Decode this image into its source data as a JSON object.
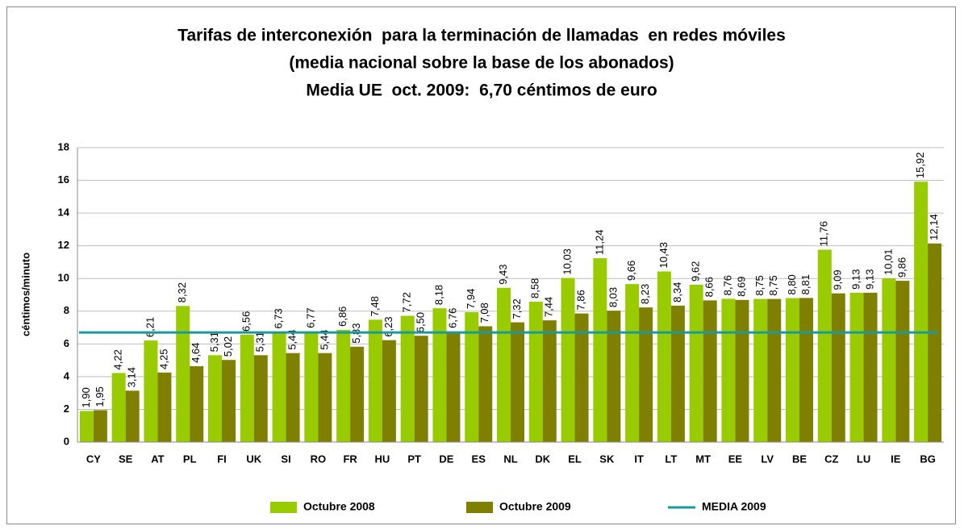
{
  "chart_data": {
    "type": "bar",
    "title": [
      "Tarifas de interconexión  para la terminación de llamadas  en redes móviles",
      "(media nacional sobre la base de los abonados)",
      "Media UE  oct. 2009:  6,70 céntimos de euro"
    ],
    "y_label": "céntimos/minuto",
    "categories": [
      "CY",
      "SE",
      "AT",
      "PL",
      "FI",
      "UK",
      "SI",
      "RO",
      "FR",
      "HU",
      "PT",
      "DE",
      "ES",
      "NL",
      "DK",
      "EL",
      "SK",
      "IT",
      "LT",
      "MT",
      "EE",
      "LV",
      "BE",
      "CZ",
      "LU",
      "IE",
      "BG"
    ],
    "series": [
      {
        "name": "Octubre 2008",
        "color": "#99cc00",
        "values": [
          1.9,
          4.22,
          6.21,
          8.32,
          5.31,
          6.56,
          6.73,
          6.77,
          6.86,
          7.48,
          7.72,
          8.18,
          7.94,
          9.43,
          8.58,
          10.03,
          11.24,
          9.66,
          10.43,
          9.62,
          8.76,
          8.75,
          8.8,
          11.76,
          9.13,
          10.01,
          15.92
        ],
        "value_labels": [
          "1,90",
          "4,22",
          "6,21",
          "8,32",
          "5,31",
          "6,56",
          "6,73",
          "6,77",
          "6,86",
          "7,48",
          "7,72",
          "8,18",
          "7,94",
          "9,43",
          "8,58",
          "10,03",
          "11,24",
          "9,66",
          "10,43",
          "9,62",
          "8,76",
          "8,75",
          "8,80",
          "11,76",
          "9,13",
          "10,01",
          "15,92"
        ]
      },
      {
        "name": "Octubre 2009",
        "color": "#808000",
        "values": [
          1.95,
          3.14,
          4.25,
          4.64,
          5.02,
          5.31,
          5.44,
          5.44,
          5.83,
          6.23,
          6.5,
          6.76,
          7.08,
          7.32,
          7.44,
          7.86,
          8.03,
          8.23,
          8.34,
          8.66,
          8.69,
          8.75,
          8.81,
          9.09,
          9.13,
          9.86,
          12.14
        ],
        "value_labels": [
          "1,95",
          "3,14",
          "4,25",
          "4,64",
          "5,02",
          "5,31",
          "5,44",
          "5,44",
          "5,83",
          "6,23",
          "6,50",
          "6,76",
          "7,08",
          "7,32",
          "7,44",
          "7,86",
          "8,03",
          "8,23",
          "8,34",
          "8,66",
          "8,69",
          "8,75",
          "8,81",
          "9,09",
          "9,13",
          "9,86",
          "12,14"
        ]
      }
    ],
    "reference_line": {
      "name": "MEDIA 2009",
      "value": 6.7,
      "color": "#1a9a9a"
    },
    "ylim": [
      0,
      18
    ],
    "yticks": [
      0,
      2,
      4,
      6,
      8,
      10,
      12,
      14,
      16,
      18
    ],
    "grid": true,
    "legend": "bottom"
  }
}
